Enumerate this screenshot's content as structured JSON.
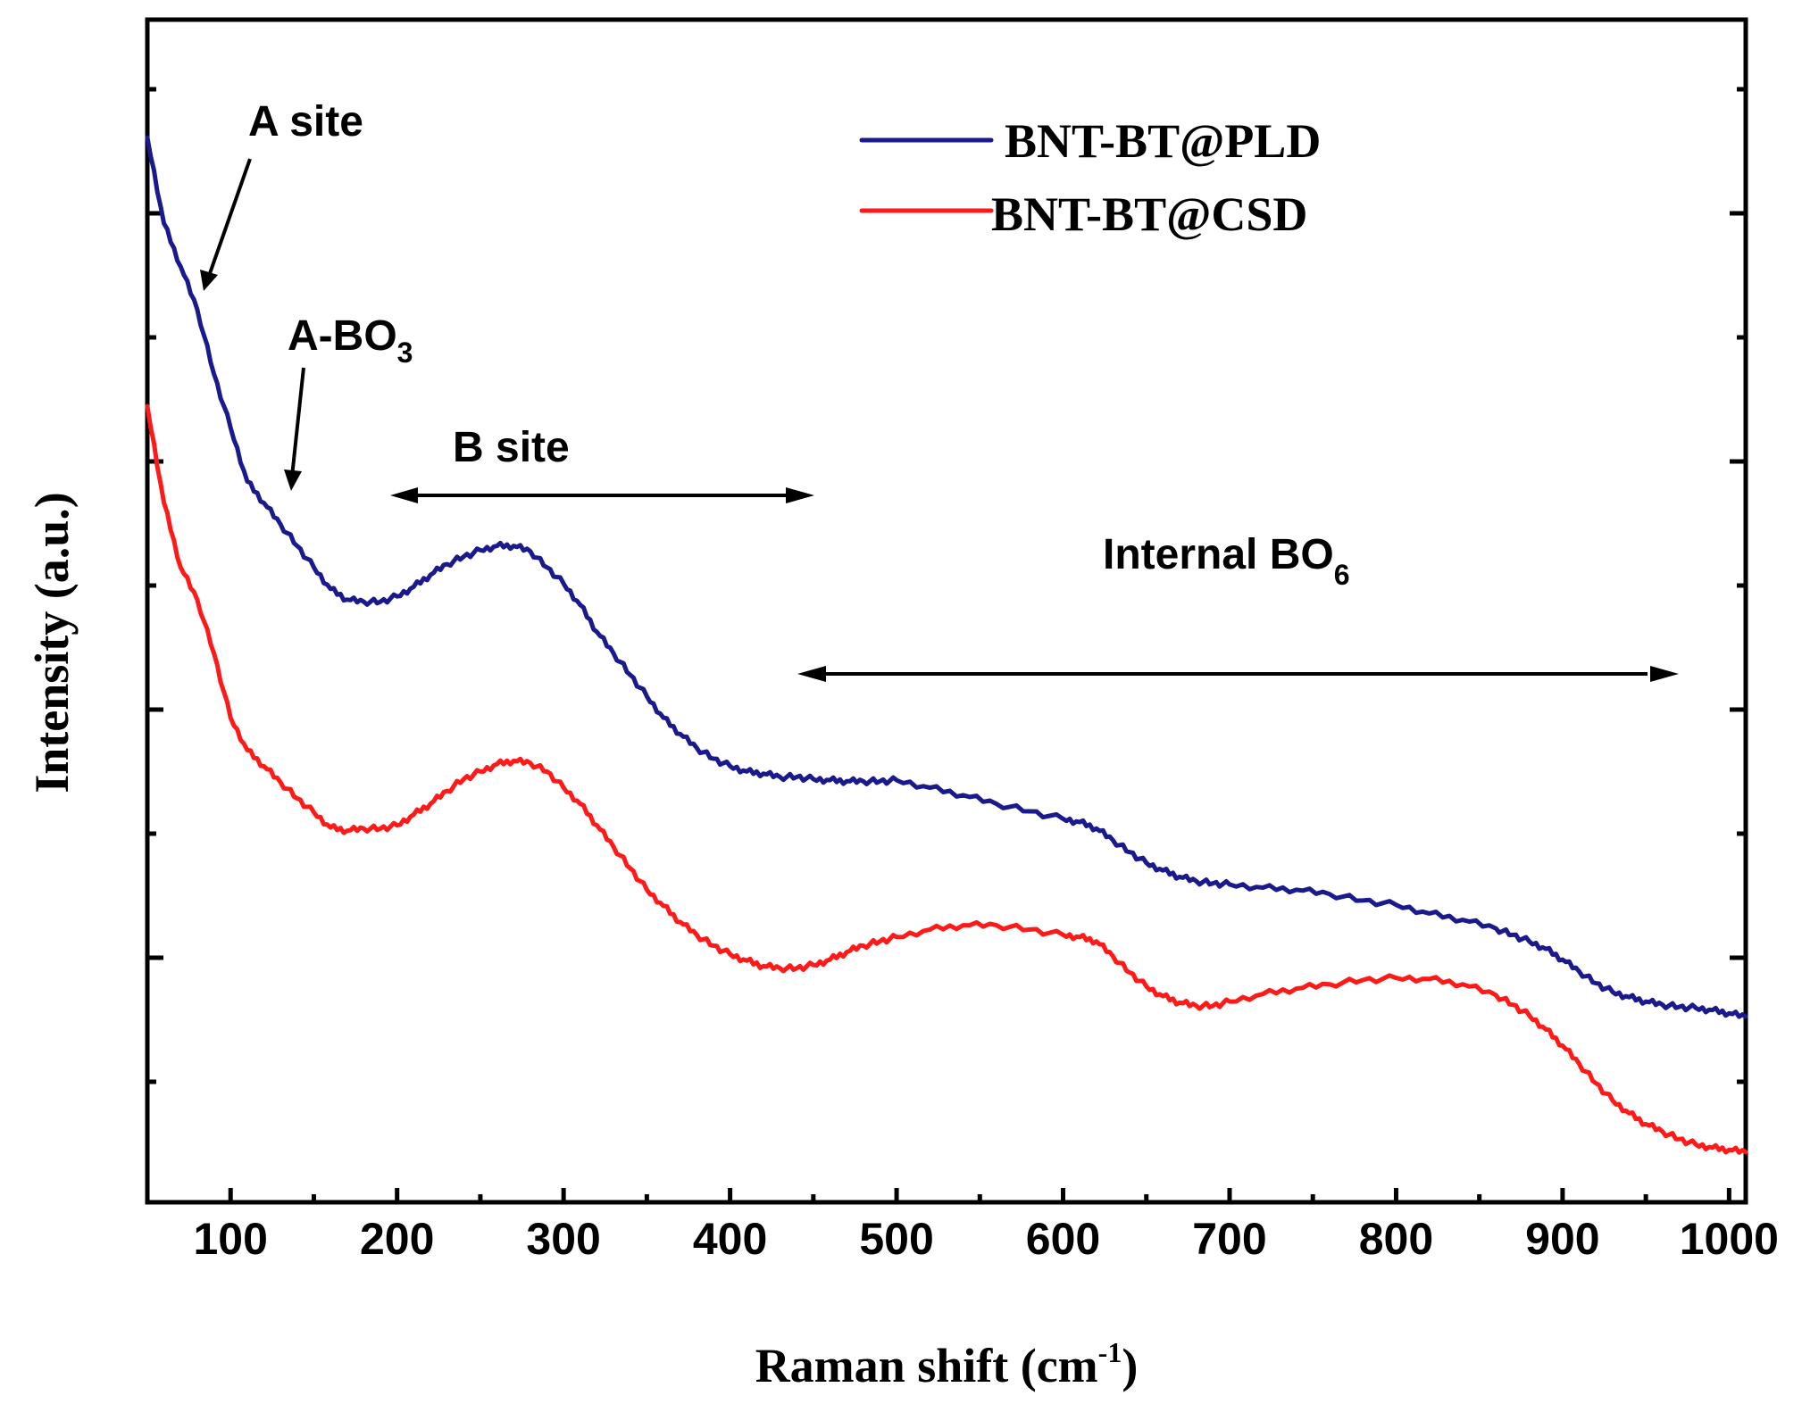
{
  "chart_data": {
    "type": "line",
    "xlabel": "Raman shift (cm",
    "xlabel_sup": "-1",
    "xlabel_end": ")",
    "ylabel": "Intensity (a.u.)",
    "xlim": [
      50,
      1010
    ],
    "ylim": [
      0,
      1
    ],
    "x_ticks": [
      100,
      200,
      300,
      400,
      500,
      600,
      700,
      800,
      900,
      1000
    ],
    "legend_position": "top-right",
    "series": [
      {
        "name": "BNT-BT@PLD",
        "color": "#1a1a8c",
        "x": [
          50,
          60,
          70,
          80,
          90,
          100,
          110,
          120,
          130,
          140,
          150,
          160,
          170,
          180,
          190,
          200,
          210,
          220,
          230,
          240,
          250,
          260,
          270,
          280,
          290,
          300,
          310,
          320,
          330,
          340,
          350,
          360,
          370,
          380,
          390,
          400,
          410,
          420,
          430,
          440,
          450,
          460,
          470,
          480,
          490,
          500,
          520,
          540,
          560,
          580,
          600,
          610,
          620,
          630,
          640,
          650,
          660,
          670,
          680,
          690,
          700,
          720,
          740,
          760,
          780,
          800,
          820,
          840,
          860,
          870,
          880,
          890,
          900,
          910,
          920,
          930,
          940,
          950,
          960,
          970,
          980,
          990,
          1000,
          1010
        ],
        "y": [
          0.98,
          0.9,
          0.86,
          0.82,
          0.76,
          0.71,
          0.66,
          0.64,
          0.62,
          0.6,
          0.58,
          0.56,
          0.55,
          0.548,
          0.548,
          0.553,
          0.562,
          0.573,
          0.583,
          0.59,
          0.596,
          0.6,
          0.6,
          0.595,
          0.58,
          0.565,
          0.545,
          0.52,
          0.5,
          0.48,
          0.46,
          0.44,
          0.425,
          0.412,
          0.402,
          0.395,
          0.39,
          0.388,
          0.385,
          0.385,
          0.383,
          0.382,
          0.381,
          0.381,
          0.381,
          0.382,
          0.375,
          0.368,
          0.36,
          0.353,
          0.346,
          0.343,
          0.337,
          0.326,
          0.315,
          0.305,
          0.298,
          0.292,
          0.288,
          0.286,
          0.285,
          0.282,
          0.28,
          0.276,
          0.27,
          0.266,
          0.258,
          0.252,
          0.244,
          0.238,
          0.232,
          0.225,
          0.215,
          0.204,
          0.193,
          0.185,
          0.18,
          0.176,
          0.173,
          0.171,
          0.17,
          0.168,
          0.165,
          0.162
        ]
      },
      {
        "name": "BNT-BT@CSD",
        "color": "#ff1a1a",
        "x": [
          50,
          60,
          70,
          80,
          90,
          100,
          110,
          120,
          130,
          140,
          150,
          160,
          170,
          180,
          190,
          200,
          210,
          220,
          230,
          240,
          250,
          260,
          270,
          280,
          290,
          300,
          310,
          320,
          330,
          340,
          350,
          360,
          370,
          380,
          390,
          400,
          410,
          420,
          430,
          440,
          450,
          460,
          470,
          480,
          490,
          500,
          520,
          540,
          560,
          580,
          600,
          610,
          620,
          630,
          640,
          650,
          660,
          670,
          680,
          690,
          700,
          720,
          740,
          760,
          780,
          800,
          820,
          840,
          860,
          870,
          880,
          890,
          900,
          910,
          920,
          930,
          940,
          950,
          960,
          970,
          980,
          990,
          1000,
          1010
        ],
        "y": [
          0.73,
          0.64,
          0.58,
          0.55,
          0.5,
          0.44,
          0.41,
          0.395,
          0.38,
          0.365,
          0.352,
          0.338,
          0.335,
          0.337,
          0.337,
          0.34,
          0.35,
          0.36,
          0.372,
          0.383,
          0.39,
          0.397,
          0.4,
          0.398,
          0.39,
          0.375,
          0.36,
          0.34,
          0.32,
          0.3,
          0.28,
          0.265,
          0.25,
          0.238,
          0.228,
          0.22,
          0.214,
          0.209,
          0.207,
          0.207,
          0.21,
          0.215,
          0.222,
          0.228,
          0.232,
          0.236,
          0.243,
          0.247,
          0.247,
          0.243,
          0.238,
          0.236,
          0.232,
          0.218,
          0.203,
          0.19,
          0.181,
          0.175,
          0.172,
          0.172,
          0.176,
          0.183,
          0.188,
          0.192,
          0.196,
          0.198,
          0.197,
          0.192,
          0.182,
          0.173,
          0.163,
          0.15,
          0.135,
          0.118,
          0.1,
          0.084,
          0.072,
          0.062,
          0.055,
          0.048,
          0.043,
          0.04,
          0.038,
          0.036
        ]
      }
    ],
    "annotations": {
      "a_site": "A site",
      "a_bo3": "A-BO",
      "a_bo3_sub": "3",
      "b_site": "B site",
      "internal_bo6": "Internal BO",
      "internal_bo6_sub": "6"
    }
  }
}
